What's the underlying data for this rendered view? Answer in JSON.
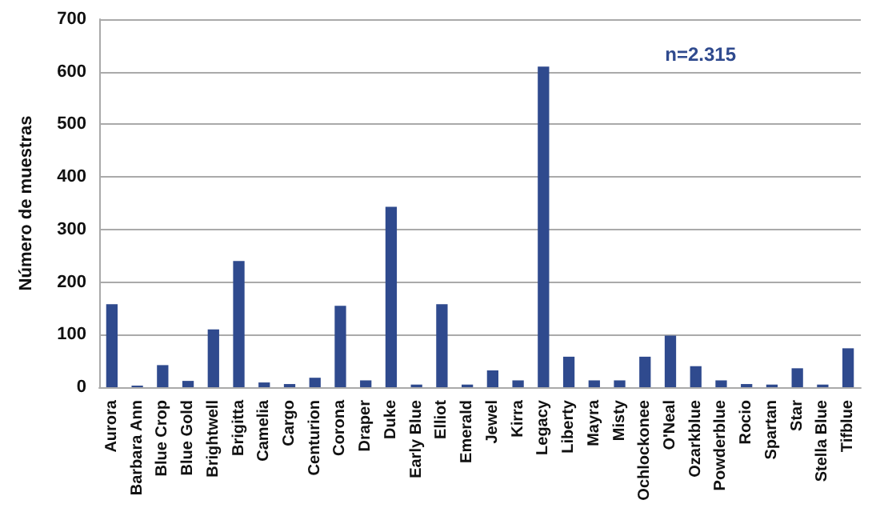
{
  "chart_data": {
    "type": "bar",
    "ylabel": "Número de muestras",
    "categories": [
      "Aurora",
      "Barbara Ann",
      "Blue Crop",
      "Blue Gold",
      "Brightwell",
      "Brigitta",
      "Camelia",
      "Cargo",
      "Centurion",
      "Corona",
      "Draper",
      "Duke",
      "Early Blue",
      "Elliot",
      "Emerald",
      "Jewel",
      "Kirra",
      "Legacy",
      "Liberty",
      "Mayra",
      "Misty",
      "Ochlockonee",
      "O'Neal",
      "Ozarkblue",
      "Powderblue",
      "Rocio",
      "Spartan",
      "Star",
      "Stella Blue",
      "Tifblue"
    ],
    "values": [
      158,
      3,
      42,
      12,
      110,
      240,
      9,
      6,
      18,
      155,
      13,
      343,
      5,
      158,
      5,
      32,
      13,
      610,
      58,
      13,
      13,
      58,
      98,
      40,
      13,
      6,
      5,
      36,
      5,
      74
    ],
    "color": "#2f4a8e",
    "ylim": [
      0,
      700
    ],
    "yticks": [
      0,
      100,
      200,
      300,
      400,
      500,
      600,
      700
    ],
    "grid": "y",
    "annotations": [
      "n=2.315"
    ]
  }
}
